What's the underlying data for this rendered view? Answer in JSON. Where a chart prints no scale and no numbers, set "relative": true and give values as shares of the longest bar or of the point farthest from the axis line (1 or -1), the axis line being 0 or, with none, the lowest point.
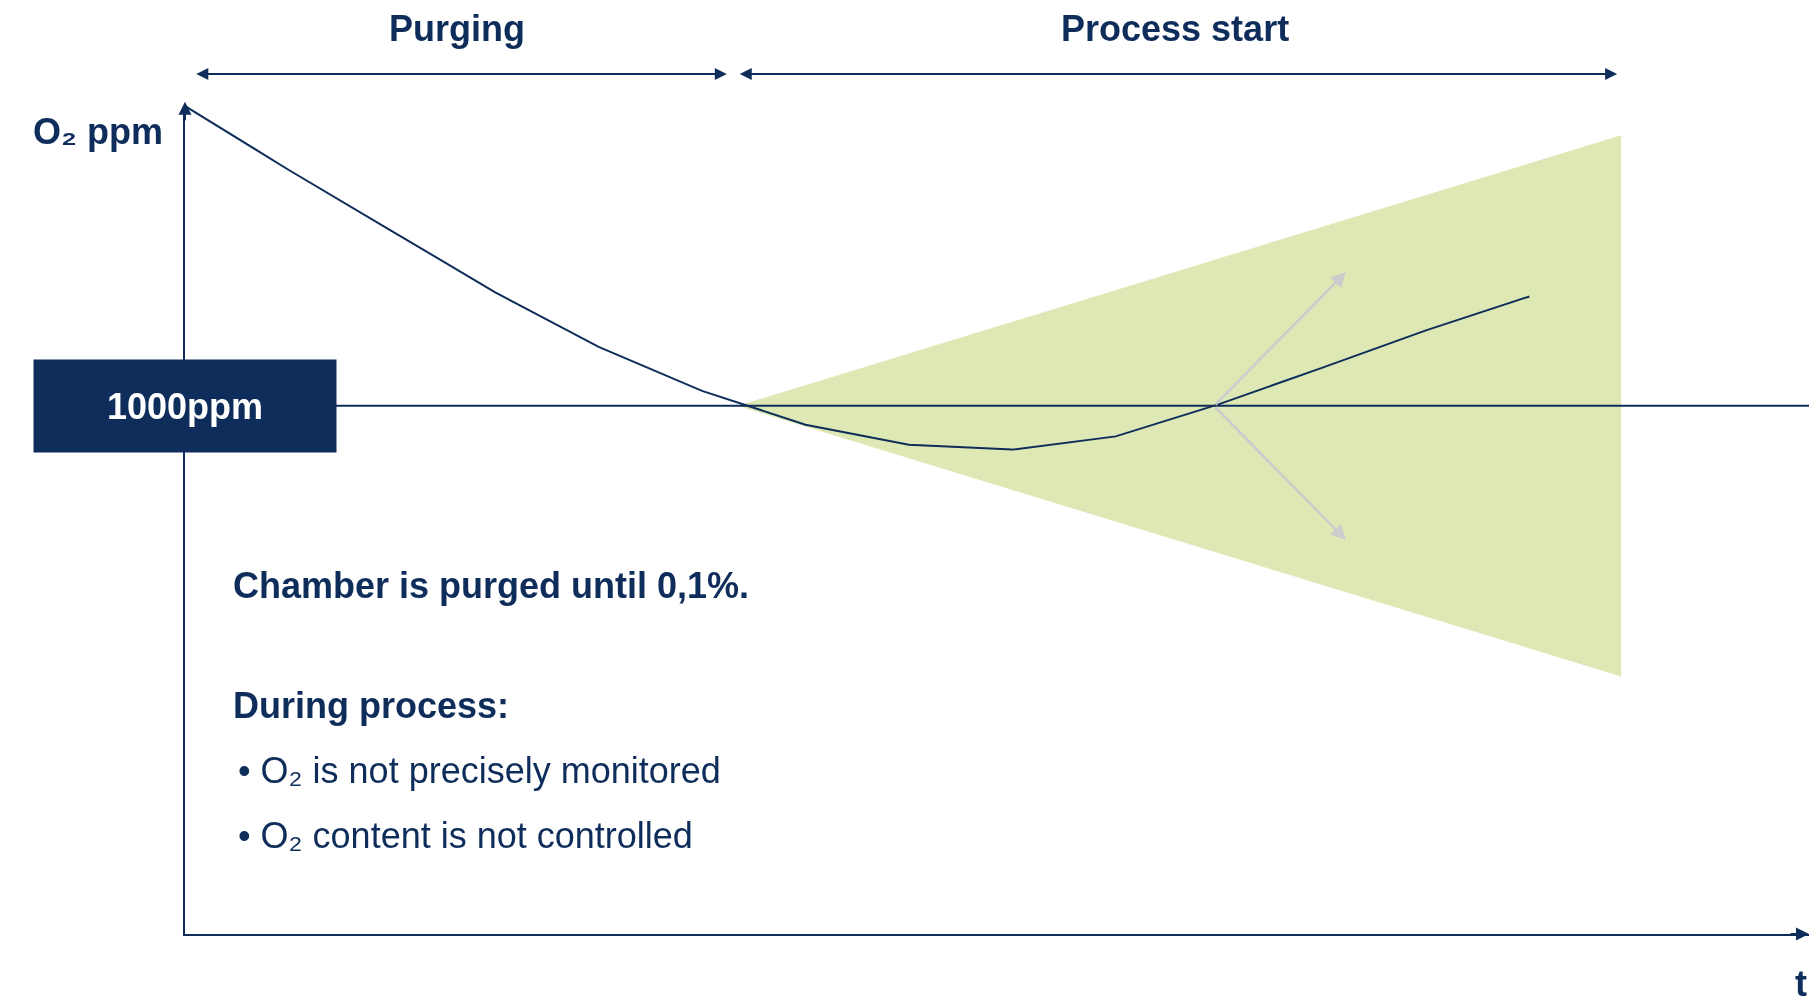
{
  "chart_data": {
    "type": "line",
    "relative": true,
    "ylabel": "O₂ ppm",
    "grid": false,
    "marker": "none",
    "line_style": "solid",
    "categories": [
      null,
      null,
      null,
      null,
      null,
      null,
      null,
      null,
      null,
      null,
      null,
      null,
      null,
      null
    ],
    "series": [
      {
        "color": "#0e2d5a",
        "values": [
          1,
          0.923,
          0.849,
          0.775,
          0.709,
          0.656,
          0.615,
          0.591,
          0.585,
          0.601,
          0.64,
          0.684,
          0.729,
          0.77
        ]
      }
    ],
    "ref_lines": [
      {
        "axis": "y",
        "value": 0.638,
        "label": "1000ppm",
        "color": "#0e2d5a"
      }
    ],
    "annotations": [
      "Purging",
      "Process start",
      "Chamber is purged until 0,1%.",
      "During process:",
      "• O₂ is not precisely monitored",
      "• O₂ content is not controlled",
      "t"
    ]
  }
}
